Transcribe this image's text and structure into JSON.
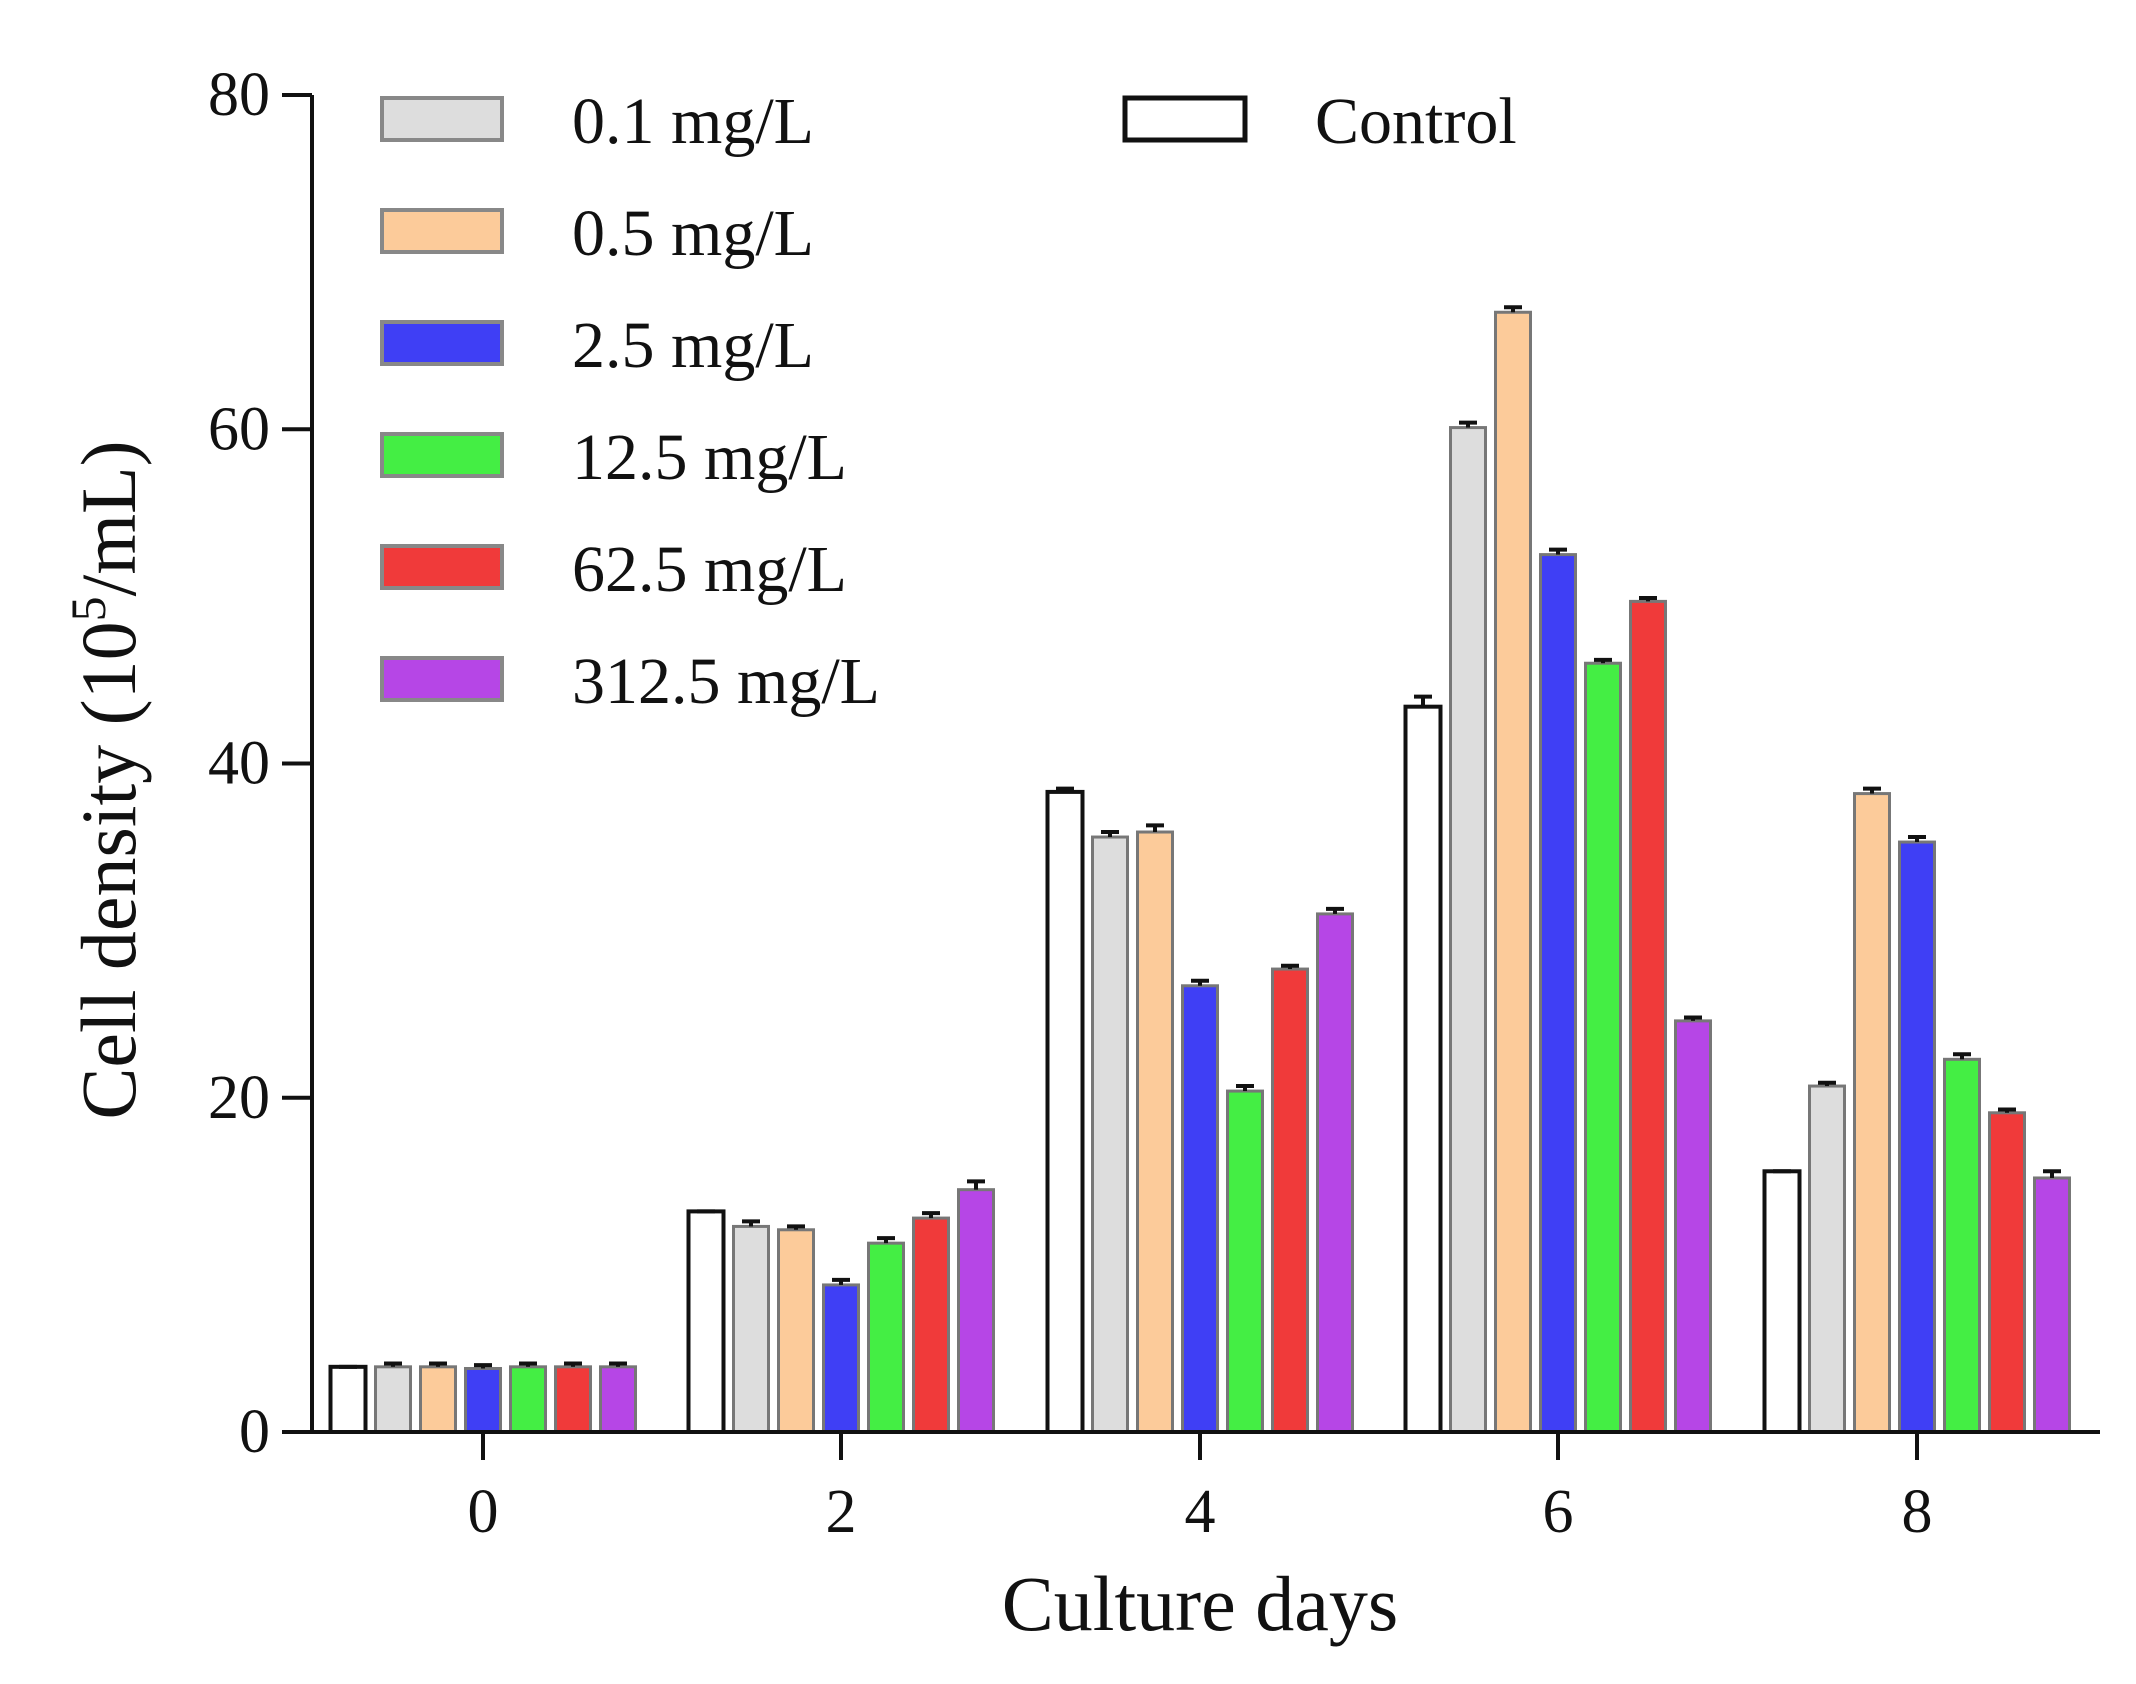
{
  "chart_data": {
    "type": "bar",
    "title": "",
    "xlabel": "Culture days",
    "ylabel_main": "Cell density (10",
    "ylabel_sup": "5",
    "ylabel_tail": "/mL)",
    "ylim": [
      0,
      80
    ],
    "yticks": [
      0,
      20,
      40,
      60,
      80
    ],
    "grid": false,
    "legend_position": "top-left",
    "categories": [
      "0",
      "2",
      "4",
      "6",
      "8"
    ],
    "series": [
      {
        "name": "Control",
        "color": "#ffffff",
        "values": [
          3.9,
          13.2,
          38.3,
          43.4,
          15.6
        ],
        "errors": [
          0.0,
          0.0,
          0.2,
          0.6,
          0.0
        ]
      },
      {
        "name": "0.1 mg/L",
        "color": "#dddddd",
        "values": [
          3.9,
          12.3,
          35.6,
          60.1,
          20.7
        ],
        "errors": [
          0.2,
          0.3,
          0.3,
          0.3,
          0.2
        ]
      },
      {
        "name": "0.5 mg/L",
        "color": "#fccb9a",
        "values": [
          3.9,
          12.1,
          35.9,
          67.0,
          38.2
        ],
        "errors": [
          0.2,
          0.2,
          0.4,
          0.3,
          0.3
        ]
      },
      {
        "name": "2.5 mg/L",
        "color": "#3f3ff5",
        "values": [
          3.8,
          8.8,
          26.7,
          52.5,
          35.3
        ],
        "errors": [
          0.2,
          0.3,
          0.3,
          0.3,
          0.3
        ]
      },
      {
        "name": "12.5 mg/L",
        "color": "#44ee44",
        "values": [
          3.9,
          11.3,
          20.4,
          46.0,
          22.3
        ],
        "errors": [
          0.2,
          0.3,
          0.3,
          0.2,
          0.3
        ]
      },
      {
        "name": "62.5 mg/L",
        "color": "#f03a3a",
        "values": [
          3.9,
          12.8,
          27.7,
          49.7,
          19.1
        ],
        "errors": [
          0.2,
          0.3,
          0.2,
          0.2,
          0.2
        ]
      },
      {
        "name": "312.5 mg/L",
        "color": "#b646e6",
        "values": [
          3.9,
          14.5,
          31.0,
          24.6,
          15.2
        ],
        "errors": [
          0.2,
          0.5,
          0.3,
          0.2,
          0.4
        ]
      }
    ],
    "legend_order": [
      "0.1 mg/L",
      "0.5 mg/L",
      "2.5 mg/L",
      "12.5 mg/L",
      "62.5 mg/L",
      "312.5 mg/L",
      "Control"
    ]
  }
}
